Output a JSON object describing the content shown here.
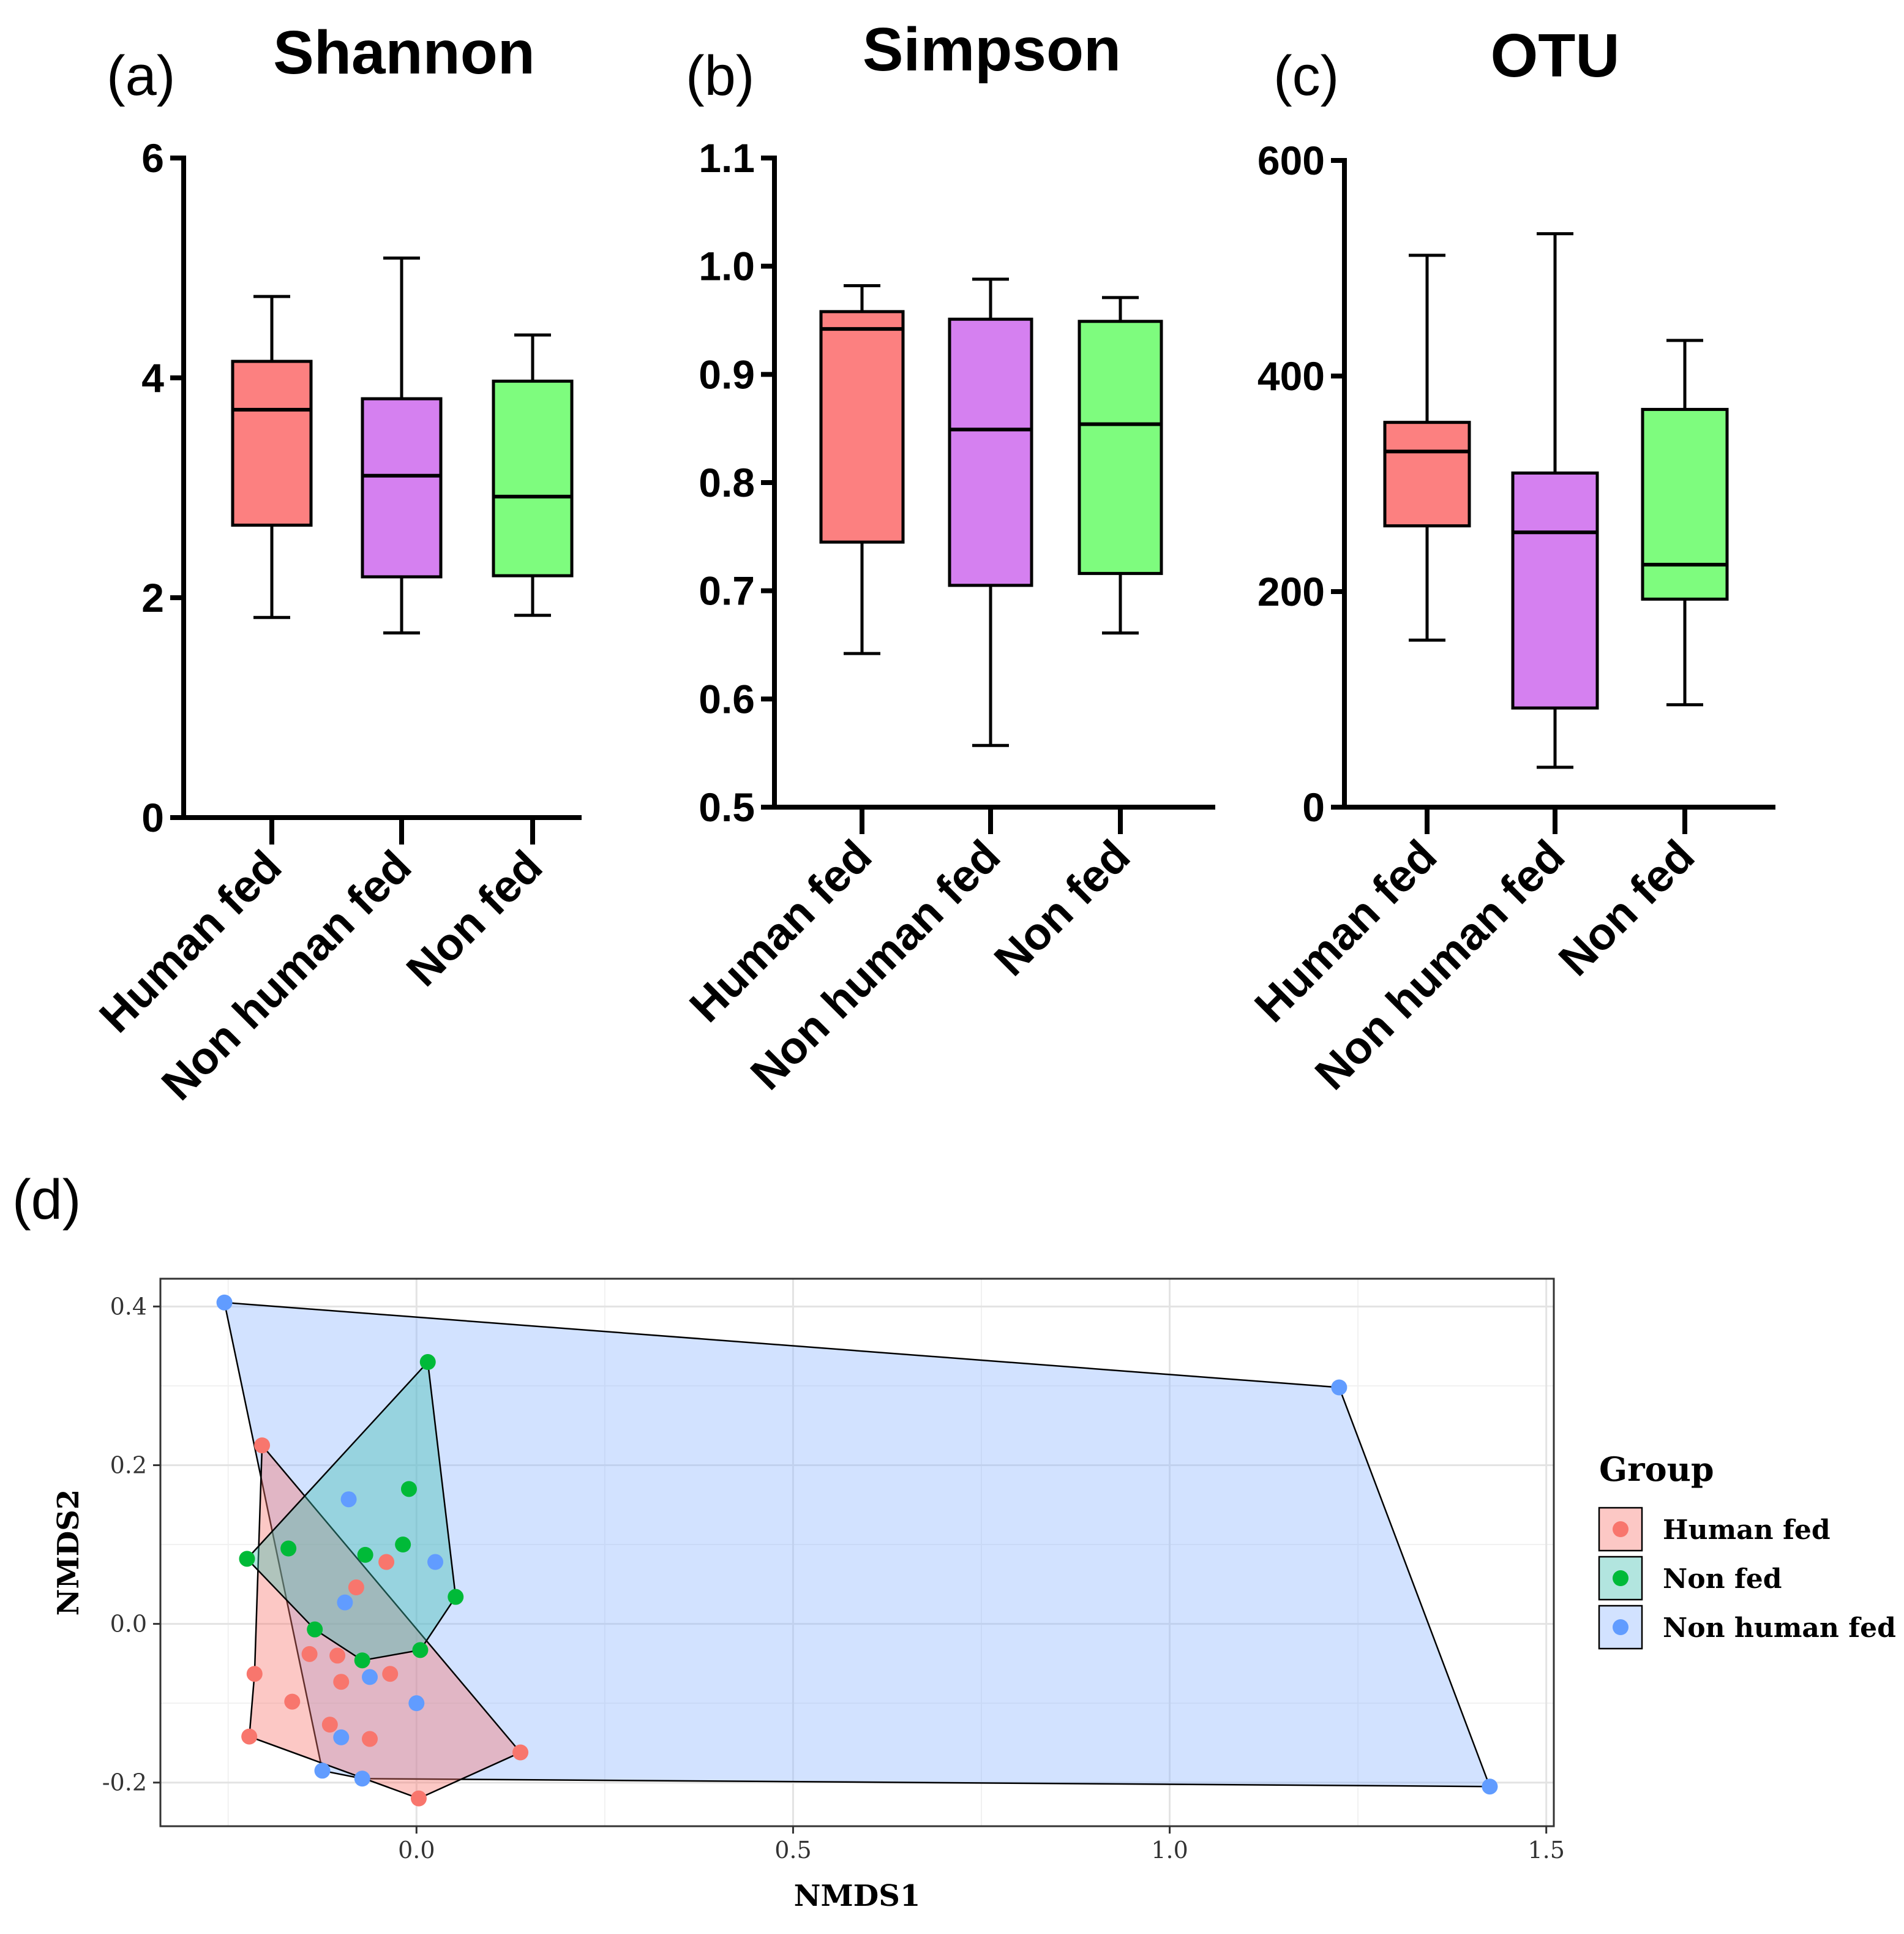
{
  "panels": {
    "a": {
      "label": "(a)",
      "title": "Shannon"
    },
    "b": {
      "label": "(b)",
      "title": "Simpson"
    },
    "c": {
      "label": "(c)",
      "title": "OTU"
    },
    "d": {
      "label": "(d)"
    }
  },
  "chart_data": [
    {
      "id": "a",
      "type": "boxplot",
      "title": "Shannon",
      "categories": [
        "Human fed",
        "Non human fed",
        "Non fed"
      ],
      "colors": [
        "#fc8080",
        "#d580f0",
        "#7efc7e"
      ],
      "ylim": [
        0,
        6
      ],
      "yticks": [
        0,
        2,
        4,
        6
      ],
      "ytick_labels": [
        "0",
        "2",
        "4",
        "6"
      ],
      "boxes": [
        {
          "min": 1.82,
          "q1": 2.66,
          "median": 3.71,
          "q3": 4.15,
          "max": 4.74
        },
        {
          "min": 1.68,
          "q1": 2.19,
          "median": 3.11,
          "q3": 3.81,
          "max": 5.09
        },
        {
          "min": 1.84,
          "q1": 2.2,
          "median": 2.92,
          "q3": 3.97,
          "max": 4.39
        }
      ]
    },
    {
      "id": "b",
      "type": "boxplot",
      "title": "Simpson",
      "categories": [
        "Human fed",
        "Non human fed",
        "Non fed"
      ],
      "colors": [
        "#fc8080",
        "#d580f0",
        "#7efc7e"
      ],
      "ylim": [
        0.5,
        1.1
      ],
      "yticks": [
        0.5,
        0.6,
        0.7,
        0.8,
        0.9,
        1.0,
        1.1
      ],
      "ytick_labels": [
        "0.5",
        "0.6",
        "0.7",
        "0.8",
        "0.9",
        "1.0",
        "1.1"
      ],
      "boxes": [
        {
          "min": 0.642,
          "q1": 0.745,
          "median": 0.942,
          "q3": 0.958,
          "max": 0.982
        },
        {
          "min": 0.557,
          "q1": 0.705,
          "median": 0.849,
          "q3": 0.951,
          "max": 0.988
        },
        {
          "min": 0.661,
          "q1": 0.716,
          "median": 0.854,
          "q3": 0.949,
          "max": 0.971
        }
      ]
    },
    {
      "id": "c",
      "type": "boxplot",
      "title": "OTU",
      "categories": [
        "Human fed",
        "Non human fed",
        "Non fed"
      ],
      "colors": [
        "#fc8080",
        "#d580f0",
        "#7efc7e"
      ],
      "ylim": [
        0,
        600
      ],
      "yticks": [
        0,
        200,
        400,
        600
      ],
      "ytick_labels": [
        "0",
        "200",
        "400",
        "600"
      ],
      "boxes": [
        {
          "min": 155,
          "q1": 261,
          "median": 330,
          "q3": 357,
          "max": 512
        },
        {
          "min": 37,
          "q1": 92,
          "median": 255,
          "q3": 310,
          "max": 532
        },
        {
          "min": 95,
          "q1": 193,
          "median": 225,
          "q3": 369,
          "max": 433
        }
      ]
    },
    {
      "id": "d",
      "type": "scatter",
      "xlabel": "NMDS1",
      "ylabel": "NMDS2",
      "xlim": [
        -0.34,
        1.51
      ],
      "ylim": [
        -0.255,
        0.435
      ],
      "xticks": [
        0.0,
        0.5,
        1.0,
        1.5
      ],
      "xtick_labels": [
        "0.0",
        "0.5",
        "1.0",
        "1.5"
      ],
      "yticks": [
        -0.2,
        0.0,
        0.2,
        0.4
      ],
      "ytick_labels": [
        "-0.2",
        "0.0",
        "0.2",
        "0.4"
      ],
      "legend_title": "Group",
      "series": [
        {
          "name": "Human fed",
          "color": "#f8766d",
          "fill": "#f8766d",
          "points": [
            [
              -0.205,
              0.225
            ],
            [
              -0.215,
              -0.063
            ],
            [
              -0.222,
              -0.142
            ],
            [
              -0.165,
              -0.098
            ],
            [
              -0.142,
              -0.038
            ],
            [
              -0.105,
              -0.04
            ],
            [
              -0.1,
              -0.073
            ],
            [
              -0.08,
              0.046
            ],
            [
              -0.04,
              0.078
            ],
            [
              -0.035,
              -0.063
            ],
            [
              -0.062,
              -0.145
            ],
            [
              -0.115,
              -0.127
            ],
            [
              0.003,
              -0.22
            ],
            [
              0.138,
              -0.162
            ]
          ],
          "hull": [
            [
              -0.205,
              0.225
            ],
            [
              0.138,
              -0.162
            ],
            [
              0.003,
              -0.22
            ],
            [
              -0.222,
              -0.142
            ],
            [
              -0.215,
              -0.063
            ]
          ]
        },
        {
          "name": "Non fed",
          "color": "#00ba38",
          "fill": "#3fbfb0",
          "points": [
            [
              0.015,
              0.33
            ],
            [
              -0.01,
              0.17
            ],
            [
              -0.018,
              0.1
            ],
            [
              -0.068,
              0.087
            ],
            [
              -0.17,
              0.095
            ],
            [
              -0.225,
              0.082
            ],
            [
              -0.135,
              -0.007
            ],
            [
              -0.072,
              -0.046
            ],
            [
              0.005,
              -0.033
            ],
            [
              0.052,
              0.034
            ]
          ],
          "hull": [
            [
              0.015,
              0.33
            ],
            [
              0.052,
              0.034
            ],
            [
              0.005,
              -0.033
            ],
            [
              -0.072,
              -0.046
            ],
            [
              -0.135,
              -0.007
            ],
            [
              -0.225,
              0.082
            ]
          ]
        },
        {
          "name": "Non human fed",
          "color": "#619cff",
          "fill": "#8fb6ff",
          "points": [
            [
              -0.255,
              0.405
            ],
            [
              1.225,
              0.298
            ],
            [
              1.425,
              -0.205
            ],
            [
              -0.09,
              0.157
            ],
            [
              0.025,
              0.078
            ],
            [
              -0.095,
              0.027
            ],
            [
              -0.062,
              -0.067
            ],
            [
              0.0,
              -0.1
            ],
            [
              -0.1,
              -0.143
            ],
            [
              -0.125,
              -0.185
            ],
            [
              -0.072,
              -0.195
            ]
          ],
          "hull": [
            [
              -0.255,
              0.405
            ],
            [
              1.225,
              0.298
            ],
            [
              1.425,
              -0.205
            ],
            [
              -0.072,
              -0.195
            ],
            [
              -0.125,
              -0.185
            ]
          ]
        }
      ]
    }
  ]
}
